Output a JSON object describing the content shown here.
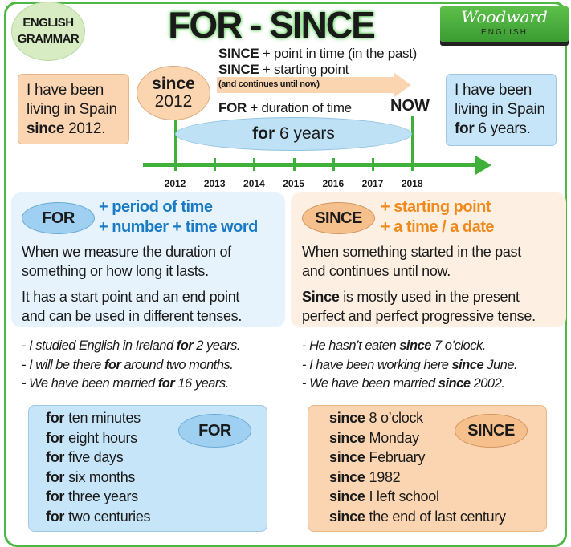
{
  "badge": {
    "line1": "ENGLISH",
    "line2": "GRAMMAR"
  },
  "title": "FOR - SINCE",
  "logo": {
    "brand": "Woodward",
    "sub": "ENGLISH"
  },
  "rules": {
    "since1_key": "SINCE",
    "since1_rest": " + point in time (in the past)",
    "since2_key": "SINCE",
    "since2_rest": " + starting point",
    "since_note": "(and continues until now)",
    "for_key": "FOR",
    "for_rest": " + duration of time",
    "now": "NOW"
  },
  "left_example": {
    "l1": "I have been",
    "l2": "living in Spain",
    "key": "since",
    "rest": " 2012."
  },
  "right_example": {
    "l1": "I have been",
    "l2": "living in Spain",
    "key": "for",
    "rest": " 6 years."
  },
  "since_bubble": {
    "word": "since",
    "year": "2012"
  },
  "for_bubble": {
    "word": "for",
    "rest": " 6 years"
  },
  "timeline": {
    "years": [
      "2012",
      "2013",
      "2014",
      "2015",
      "2016",
      "2017",
      "2018"
    ]
  },
  "for_panel": {
    "label": "FOR",
    "plus1": "+ period of time",
    "plus2": "+ number + time word",
    "p1a": "When we measure the duration of",
    "p1b": "something or how long it lasts.",
    "p2a": "It has a start point and an end point",
    "p2b": "and can be used in different tenses."
  },
  "since_panel": {
    "label": "SINCE",
    "plus1": "+ starting point",
    "plus2": "+ a time / a date",
    "p1a": "When something started in the past",
    "p1b": "and continues until now.",
    "p2key": "Since",
    "p2a": " is mostly used in the present",
    "p2b": "perfect and perfect progressive tense."
  },
  "for_examples": [
    {
      "pre": "- I studied English in Ireland ",
      "key": "for",
      "post": " 2 years."
    },
    {
      "pre": "- I will be there ",
      "key": "for",
      "post": " around two months."
    },
    {
      "pre": "- We have been married ",
      "key": "for",
      "post": " 16 years."
    }
  ],
  "since_examples": [
    {
      "pre": "- He hasn’t eaten ",
      "key": "since",
      "post": " 7 o’clock."
    },
    {
      "pre": "- I have been working here ",
      "key": "since",
      "post": " June."
    },
    {
      "pre": "- We have been married ",
      "key": "since",
      "post": " 2002."
    }
  ],
  "for_list": {
    "label": "FOR",
    "key": "for",
    "items": [
      "ten minutes",
      "eight hours",
      "five days",
      "six months",
      "three years",
      "two centuries"
    ]
  },
  "since_list": {
    "label": "SINCE",
    "key": "since",
    "items": [
      "8 o’clock",
      "Monday",
      "February",
      "1982",
      "I left school",
      "the end of last century"
    ]
  },
  "colors": {
    "green": "#3fb13a",
    "blue_text": "#1a7bc4",
    "orange_text": "#f08a1c",
    "blue_fill": "#c7e5f8",
    "orange_fill": "#fbd5b2"
  }
}
